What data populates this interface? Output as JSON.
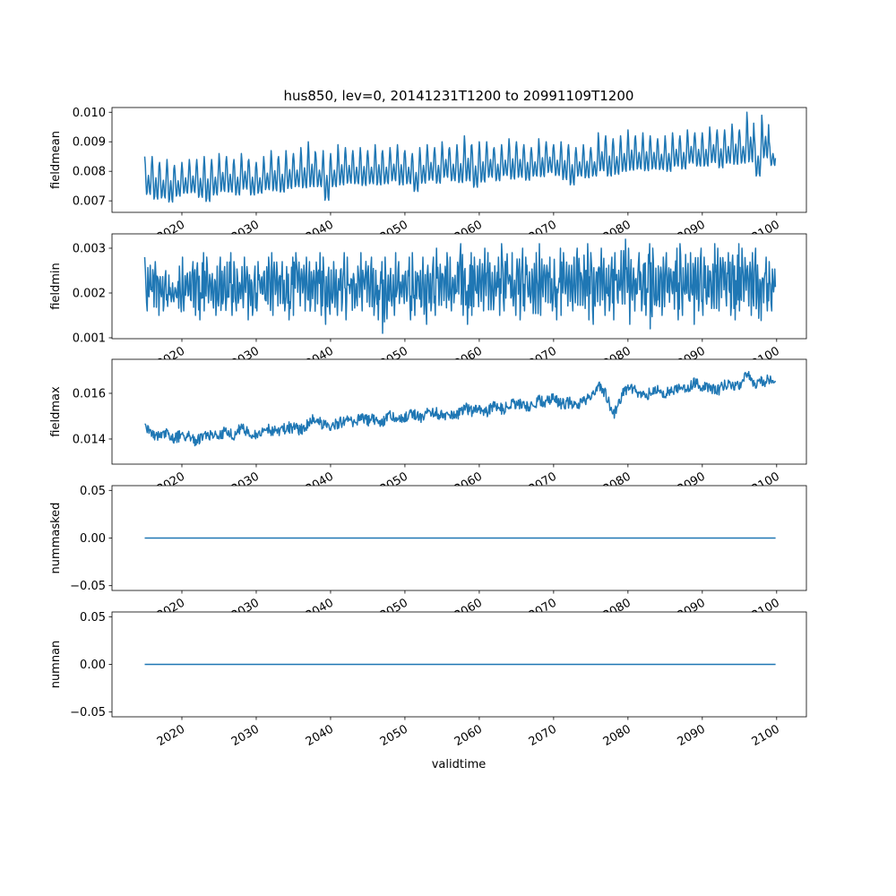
{
  "chart_data": {
    "type": "line",
    "title": "hus850, lev=0, 20141231T1200 to 20991109T1200",
    "xlabel": "validtime",
    "xlim": [
      2010.6,
      2104.0
    ],
    "xticks": [
      2020,
      2030,
      2040,
      2050,
      2060,
      2070,
      2080,
      2090,
      2100
    ],
    "color": "#1f77b4",
    "years_start": 2015,
    "years_end": 2099.85,
    "panels": [
      {
        "ylabel": "fieldmean",
        "ylim": [
          0.00661,
          0.01016
        ],
        "yticks": [
          "0.007",
          "0.008",
          "0.009",
          "0.010"
        ],
        "mode": "seasonal",
        "annual_max": [
          0.0085,
          0.0085,
          0.0083,
          0.0084,
          0.0082,
          0.0083,
          0.0084,
          0.0084,
          0.0085,
          0.0084,
          0.0086,
          0.0085,
          0.0084,
          0.0086,
          0.0084,
          0.0083,
          0.0085,
          0.0087,
          0.0085,
          0.0087,
          0.0086,
          0.0088,
          0.009,
          0.0086,
          0.0087,
          0.0086,
          0.0089,
          0.0088,
          0.0087,
          0.0088,
          0.0087,
          0.0089,
          0.0087,
          0.0088,
          0.0089,
          0.0087,
          0.0086,
          0.0088,
          0.0089,
          0.0088,
          0.009,
          0.0088,
          0.0089,
          0.0092,
          0.0089,
          0.009,
          0.009,
          0.0088,
          0.0089,
          0.0091,
          0.009,
          0.0089,
          0.0088,
          0.0091,
          0.009,
          0.0089,
          0.009,
          0.0089,
          0.0088,
          0.0089,
          0.0088,
          0.0093,
          0.0092,
          0.0091,
          0.0092,
          0.0094,
          0.0092,
          0.0093,
          0.0092,
          0.0091,
          0.0092,
          0.0093,
          0.0092,
          0.0094,
          0.0093,
          0.0093,
          0.0095,
          0.0094,
          0.0094,
          0.0096,
          0.0094,
          0.01,
          0.0092,
          0.0099,
          0.009
        ],
        "annual_min": [
          0.0069,
          0.0067,
          0.0068,
          0.0066,
          0.0069,
          0.007,
          0.007,
          0.0068,
          0.0066,
          0.0069,
          0.007,
          0.007,
          0.0069,
          0.0071,
          0.0069,
          0.007,
          0.0071,
          0.007,
          0.007,
          0.0071,
          0.0072,
          0.0071,
          0.0071,
          0.0072,
          0.0066,
          0.0072,
          0.0072,
          0.0073,
          0.0073,
          0.0072,
          0.0073,
          0.0072,
          0.0073,
          0.0074,
          0.0072,
          0.0073,
          0.007,
          0.0073,
          0.0074,
          0.0073,
          0.0075,
          0.0074,
          0.0073,
          0.0073,
          0.0071,
          0.0073,
          0.0075,
          0.0074,
          0.0076,
          0.0074,
          0.0075,
          0.0074,
          0.0076,
          0.0075,
          0.0077,
          0.0076,
          0.0074,
          0.0072,
          0.0076,
          0.0075,
          0.0076,
          0.0077,
          0.0075,
          0.0076,
          0.0077,
          0.0077,
          0.0078,
          0.0077,
          0.0078,
          0.0078,
          0.0077,
          0.0079,
          0.0078,
          0.008,
          0.0079,
          0.0079,
          0.008,
          0.0078,
          0.008,
          0.0079,
          0.008,
          0.0079,
          0.0075,
          0.0081,
          0.008
        ]
      },
      {
        "ylabel": "fieldmin",
        "ylim": [
          0.00098,
          0.00332
        ],
        "yticks": [
          "0.001",
          "0.002",
          "0.003"
        ],
        "mode": "noisy",
        "annual_max": [
          0.0028,
          0.0027,
          0.0025,
          0.0024,
          0.0026,
          0.0028,
          0.0027,
          0.0029,
          0.0028,
          0.0026,
          0.0028,
          0.0029,
          0.0027,
          0.0028,
          0.0026,
          0.0027,
          0.0028,
          0.0029,
          0.0027,
          0.0028,
          0.0029,
          0.0028,
          0.0027,
          0.0029,
          0.0028,
          0.0027,
          0.0029,
          0.0028,
          0.0026,
          0.0029,
          0.0028,
          0.0027,
          0.0028,
          0.0029,
          0.0027,
          0.0028,
          0.0029,
          0.0028,
          0.0028,
          0.003,
          0.0029,
          0.0028,
          0.0031,
          0.0029,
          0.0028,
          0.003,
          0.0029,
          0.0028,
          0.0031,
          0.0029,
          0.003,
          0.0028,
          0.0029,
          0.0031,
          0.0028,
          0.003,
          0.0029,
          0.0028,
          0.003,
          0.0031,
          0.0029,
          0.003,
          0.0028,
          0.0029,
          0.0032,
          0.003,
          0.0029,
          0.0031,
          0.003,
          0.0028,
          0.0029,
          0.003,
          0.0031,
          0.0029,
          0.003,
          0.0028,
          0.0031,
          0.003,
          0.0029,
          0.0031,
          0.003,
          0.0029,
          0.003,
          0.0028,
          0.0027
        ],
        "annual_min": [
          0.0016,
          0.0015,
          0.0016,
          0.0017,
          0.0014,
          0.0016,
          0.0015,
          0.0014,
          0.0016,
          0.0015,
          0.0014,
          0.0015,
          0.0016,
          0.0014,
          0.0015,
          0.0016,
          0.0014,
          0.0015,
          0.0016,
          0.0014,
          0.0015,
          0.0016,
          0.0014,
          0.0015,
          0.0013,
          0.0015,
          0.0016,
          0.0014,
          0.0015,
          0.0016,
          0.0015,
          0.0014,
          0.0011,
          0.0015,
          0.0016,
          0.0014,
          0.0015,
          0.0013,
          0.0016,
          0.0015,
          0.0014,
          0.0016,
          0.0015,
          0.0013,
          0.0015,
          0.0016,
          0.0014,
          0.0015,
          0.0016,
          0.0015,
          0.0014,
          0.0016,
          0.0013,
          0.0015,
          0.0016,
          0.0014,
          0.0015,
          0.0016,
          0.0015,
          0.0014,
          0.0013,
          0.0015,
          0.0016,
          0.0014,
          0.0015,
          0.0013,
          0.0016,
          0.0015,
          0.0012,
          0.0015,
          0.0016,
          0.0014,
          0.0015,
          0.0013,
          0.0016,
          0.0015,
          0.0014,
          0.0016,
          0.0015,
          0.0014,
          0.0016,
          0.0015,
          0.0011,
          0.0016,
          0.0016
        ]
      },
      {
        "ylabel": "fieldmax",
        "ylim": [
          0.0129,
          0.01749
        ],
        "yticks": [
          "0.014",
          "0.016"
        ],
        "mode": "wiggle",
        "annual_mean": [
          0.0145,
          0.0142,
          0.0141,
          0.0143,
          0.014,
          0.0142,
          0.0141,
          0.0139,
          0.0142,
          0.0142,
          0.0141,
          0.0144,
          0.0141,
          0.0145,
          0.0143,
          0.0142,
          0.0144,
          0.0144,
          0.0143,
          0.0145,
          0.0145,
          0.0144,
          0.0147,
          0.0149,
          0.0146,
          0.0146,
          0.0147,
          0.0148,
          0.0147,
          0.0149,
          0.0148,
          0.0149,
          0.0147,
          0.015,
          0.0149,
          0.015,
          0.0151,
          0.0149,
          0.0151,
          0.0152,
          0.015,
          0.0151,
          0.015,
          0.0154,
          0.0152,
          0.0153,
          0.0152,
          0.0155,
          0.0153,
          0.0154,
          0.0156,
          0.0155,
          0.0154,
          0.0157,
          0.0156,
          0.0158,
          0.0155,
          0.0156,
          0.0155,
          0.0157,
          0.0158,
          0.0163,
          0.016,
          0.015,
          0.0158,
          0.0163,
          0.0161,
          0.0159,
          0.016,
          0.0161,
          0.016,
          0.0161,
          0.0163,
          0.0162,
          0.0165,
          0.0162,
          0.0163,
          0.0161,
          0.0164,
          0.0163,
          0.0164,
          0.0168,
          0.0164,
          0.0165,
          0.0166
        ]
      },
      {
        "ylabel": "nummasked",
        "ylim": [
          -0.055,
          0.055
        ],
        "yticks": [
          "−0.05",
          "0.00",
          "0.05"
        ],
        "mode": "constant",
        "value": 0
      },
      {
        "ylabel": "numnan",
        "ylim": [
          -0.055,
          0.055
        ],
        "yticks": [
          "−0.05",
          "0.00",
          "0.05"
        ],
        "mode": "constant",
        "value": 0
      }
    ]
  }
}
